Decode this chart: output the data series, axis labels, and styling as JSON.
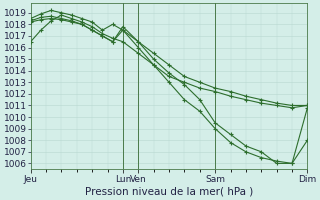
{
  "background_color": "#d4eee8",
  "plot_bg_color": "#d4eee8",
  "grid_color": "#b8d8d0",
  "line_color": "#2d6e2d",
  "ylabel_text": "Pression niveau de la mer( hPa )",
  "ylim": [
    1005.5,
    1019.8
  ],
  "yticks": [
    1006,
    1007,
    1008,
    1009,
    1010,
    1011,
    1012,
    1013,
    1014,
    1015,
    1016,
    1017,
    1018,
    1019
  ],
  "xtick_labels": [
    "Jeu",
    "Lun",
    "Ven",
    "Sam",
    "Dim"
  ],
  "xtick_positions": [
    0,
    18,
    21,
    36,
    54
  ],
  "vline_positions": [
    18,
    21,
    36,
    54
  ],
  "lines": [
    {
      "x": [
        0,
        2,
        4,
        6,
        8,
        10,
        12,
        14,
        16,
        18,
        21,
        24,
        27,
        30,
        33,
        36,
        39,
        42,
        45,
        48,
        51,
        54
      ],
      "y": [
        1016.5,
        1017.5,
        1018.3,
        1018.8,
        1018.5,
        1018.2,
        1017.8,
        1017.2,
        1016.8,
        1016.5,
        1015.5,
        1014.5,
        1013.5,
        1013.0,
        1012.5,
        1012.2,
        1011.8,
        1011.5,
        1011.2,
        1011.0,
        1010.8,
        1011.0
      ]
    },
    {
      "x": [
        0,
        2,
        4,
        6,
        8,
        10,
        12,
        14,
        16,
        18,
        21,
        24,
        27,
        30,
        33,
        36,
        39,
        42,
        45,
        48,
        51,
        54
      ],
      "y": [
        1018.5,
        1018.9,
        1019.2,
        1019.0,
        1018.8,
        1018.5,
        1018.2,
        1017.5,
        1018.0,
        1017.5,
        1016.5,
        1015.5,
        1014.5,
        1013.5,
        1013.0,
        1012.5,
        1012.2,
        1011.8,
        1011.5,
        1011.2,
        1011.0,
        1011.0
      ]
    },
    {
      "x": [
        0,
        2,
        4,
        6,
        8,
        10,
        12,
        14,
        16,
        18,
        21,
        24,
        27,
        30,
        33,
        36,
        39,
        42,
        45,
        48,
        51,
        54
      ],
      "y": [
        1018.3,
        1018.6,
        1018.7,
        1018.5,
        1018.3,
        1018.0,
        1017.5,
        1017.0,
        1016.5,
        1017.8,
        1016.5,
        1015.0,
        1013.8,
        1012.8,
        1011.5,
        1009.5,
        1008.5,
        1007.5,
        1007.0,
        1006.0,
        1006.0,
        1008.0
      ]
    },
    {
      "x": [
        0,
        2,
        4,
        6,
        8,
        10,
        12,
        14,
        16,
        18,
        21,
        24,
        27,
        30,
        33,
        36,
        39,
        42,
        45,
        48,
        51,
        54
      ],
      "y": [
        1018.2,
        1018.4,
        1018.5,
        1018.4,
        1018.2,
        1018.0,
        1017.5,
        1017.0,
        1016.5,
        1017.5,
        1016.0,
        1014.5,
        1013.0,
        1011.5,
        1010.5,
        1009.0,
        1007.8,
        1007.0,
        1006.5,
        1006.2,
        1006.0,
        1010.8
      ]
    }
  ],
  "fontsize_tick": 6.5,
  "fontsize_xlabel": 7.5,
  "marker_size": 2.5,
  "linewidth": 0.8
}
